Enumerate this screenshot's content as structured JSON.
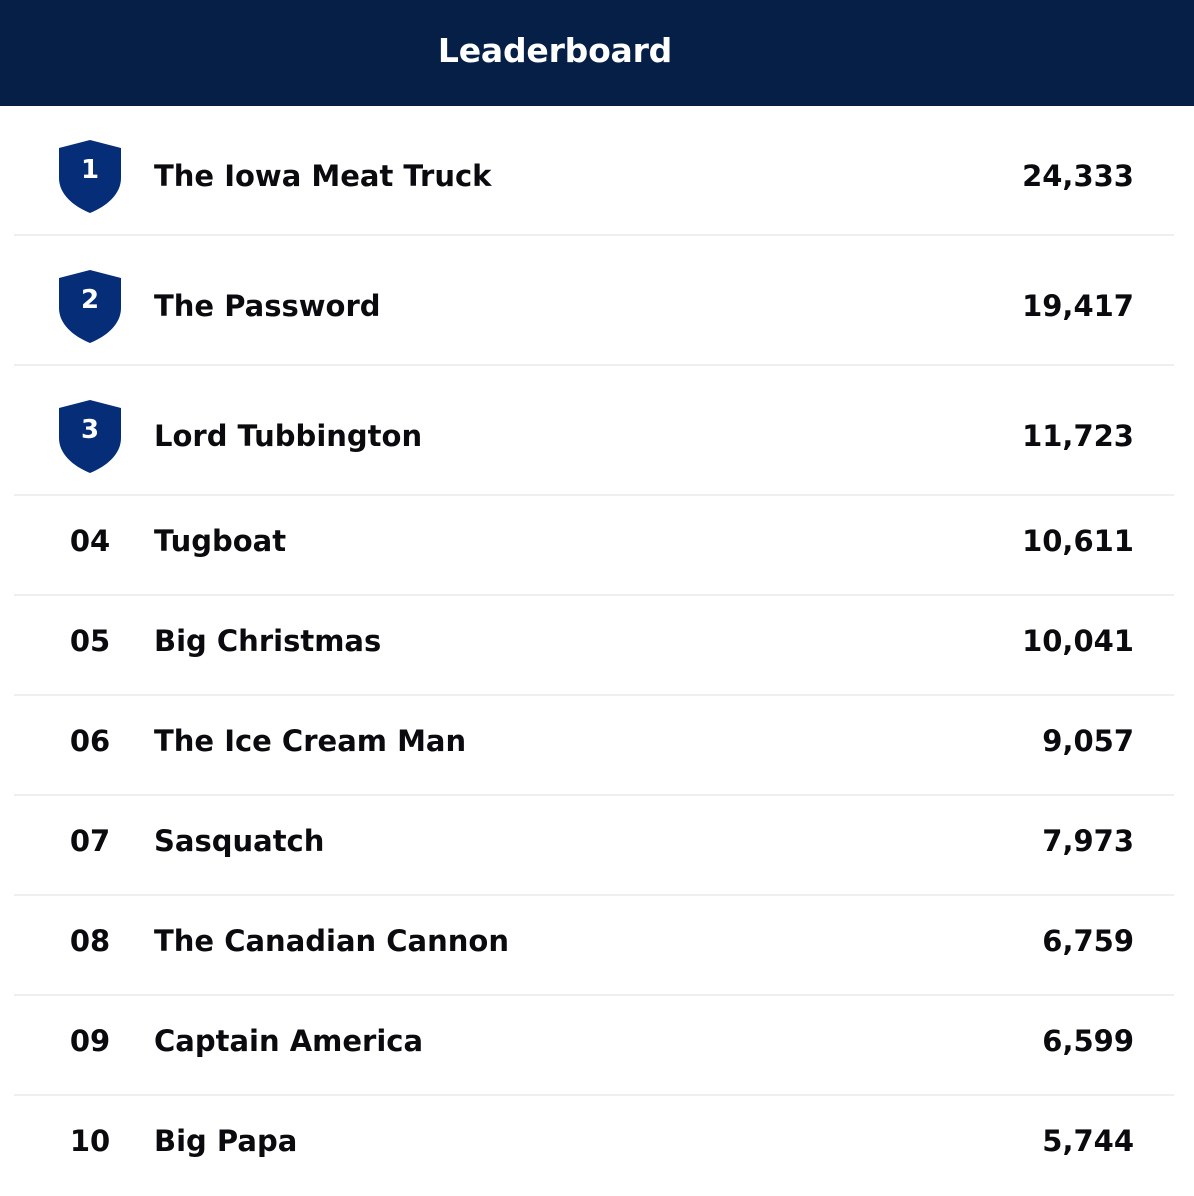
{
  "header": {
    "title": "Leaderboard"
  },
  "colors": {
    "header_bg": "#061f47",
    "shield": "#062d78",
    "divider": "#efefef",
    "text": "#0b0b0f"
  },
  "entries": [
    {
      "rank": "1",
      "name": "The Iowa Meat Truck",
      "score": "24,333",
      "badge": "shield-icon"
    },
    {
      "rank": "2",
      "name": "The Password",
      "score": "19,417",
      "badge": "shield-icon"
    },
    {
      "rank": "3",
      "name": "Lord Tubbington",
      "score": "11,723",
      "badge": "shield-icon"
    },
    {
      "rank": "04",
      "name": "Tugboat",
      "score": "10,611"
    },
    {
      "rank": "05",
      "name": "Big Christmas",
      "score": "10,041"
    },
    {
      "rank": "06",
      "name": "The Ice Cream Man",
      "score": "9,057"
    },
    {
      "rank": "07",
      "name": "Sasquatch",
      "score": "7,973"
    },
    {
      "rank": "08",
      "name": "The Canadian Cannon",
      "score": "6,759"
    },
    {
      "rank": "09",
      "name": "Captain America",
      "score": "6,599"
    },
    {
      "rank": "10",
      "name": "Big Papa",
      "score": "5,744"
    }
  ]
}
